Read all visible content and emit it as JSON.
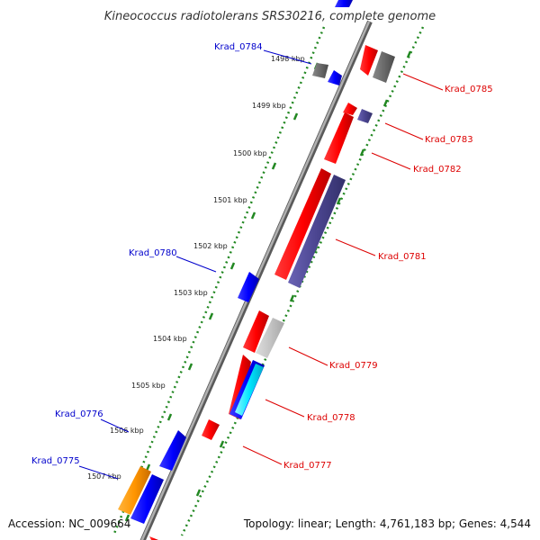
{
  "title": "Kineococcus radiotolerans SRS30216, complete genome",
  "footer": {
    "accession": "Accession: NC_009664",
    "summary": "Topology: linear; Length: 4,761,183 bp; Genes: 4,544"
  },
  "colors": {
    "backbone": "#888888",
    "tick": "#228822",
    "upper_label": "#0000cc",
    "lower_label": "#dd0000"
  },
  "kbp_ticks": [
    "1498 kbp",
    "1499 kbp",
    "1500 kbp",
    "1501 kbp",
    "1502 kbp",
    "1503 kbp",
    "1504 kbp",
    "1505 kbp",
    "1506 kbp",
    "1507 kbp"
  ],
  "upper_genes": [
    {
      "name": "Krad_0784",
      "color": "blue"
    },
    {
      "name": "Krad_0780",
      "color": "blue"
    },
    {
      "name": "Krad_0776",
      "color": "blue"
    },
    {
      "name": "Krad_0775",
      "color": "blue"
    }
  ],
  "lower_genes": [
    {
      "name": "Krad_0785",
      "color": "red"
    },
    {
      "name": "Krad_0783",
      "color": "red"
    },
    {
      "name": "Krad_0782",
      "color": "red"
    },
    {
      "name": "Krad_0781",
      "color": "red"
    },
    {
      "name": "Krad_0779",
      "color": "red"
    },
    {
      "name": "Krad_0778",
      "color": "red"
    },
    {
      "name": "Krad_0777",
      "color": "red"
    }
  ]
}
